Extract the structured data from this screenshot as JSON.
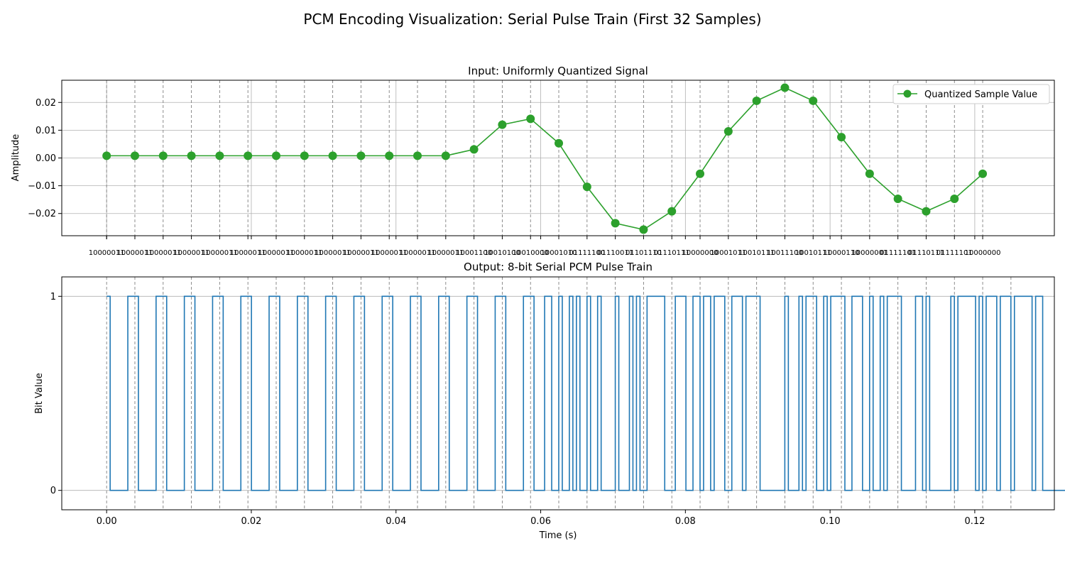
{
  "chart_data": {
    "type": "line",
    "title": "PCM Encoding Visualization: Serial Pulse Train (First 32 Samples)",
    "sample_times": [
      0,
      0.003906,
      0.007813,
      0.011719,
      0.015625,
      0.019531,
      0.023438,
      0.027344,
      0.03125,
      0.035156,
      0.039063,
      0.042969,
      0.046875,
      0.050781,
      0.054688,
      0.058594,
      0.0625,
      0.066406,
      0.070313,
      0.074219,
      0.078125,
      0.082031,
      0.085938,
      0.089844,
      0.09375,
      0.097656,
      0.101563,
      0.105469,
      0.109375,
      0.113281,
      0.117188,
      0.121094
    ],
    "top": {
      "title": "Input: Uniformly Quantized Signal",
      "ylabel": "Amplitude",
      "ylim": [
        -0.028,
        0.028
      ],
      "yticks": [
        -0.02,
        -0.01,
        0.0,
        0.01,
        0.02
      ],
      "ytick_labels": [
        "−0.02",
        "−0.01",
        "0.00",
        "0.01",
        "0.02"
      ],
      "legend": "Quantized Sample Value",
      "legend_position": "top-right",
      "color": "#2ca02c",
      "values": [
        0.0008,
        0.0008,
        0.0008,
        0.0008,
        0.0008,
        0.0008,
        0.0008,
        0.0008,
        0.0008,
        0.0008,
        0.0008,
        0.0008,
        0.0008,
        0.0031,
        0.012,
        0.0141,
        0.0053,
        -0.0104,
        -0.0235,
        -0.0258,
        -0.0192,
        -0.0057,
        0.0096,
        0.0206,
        0.0253,
        0.0206,
        0.0075,
        -0.0057,
        -0.0147,
        -0.0192,
        -0.0147,
        -0.0057
      ],
      "codes": [
        "10000011",
        "10000011",
        "10000011",
        "10000011",
        "10000011",
        "10000011",
        "10000011",
        "10000011",
        "10000011",
        "10000011",
        "10000011",
        "10000011",
        "10000011",
        "10001100",
        "10010100",
        "10010000",
        "10001010",
        "01111100",
        "01110011",
        "01101110",
        "01110111",
        "10000000",
        "10001011",
        "10010111",
        "10011100",
        "10010111",
        "10000110",
        "10000001",
        "01111101",
        "01110111",
        "01111101",
        "10000000"
      ]
    },
    "bottom": {
      "title": "Output: 8-bit Serial PCM Pulse Train",
      "xlabel": "Time (s)",
      "ylabel": "Bit Value",
      "ylim": [
        -0.1,
        1.1
      ],
      "yticks": [
        0,
        1
      ],
      "ytick_labels": [
        "0",
        "1"
      ],
      "xlim": [
        -0.0062,
        0.131
      ],
      "xticks": [
        0.0,
        0.02,
        0.04,
        0.06,
        0.08,
        0.1,
        0.12
      ],
      "xtick_labels": [
        "0.00",
        "0.02",
        "0.04",
        "0.06",
        "0.08",
        "0.10",
        "0.12"
      ],
      "color": "#1f77b4",
      "bits": "10000011100000111000001110000011100000111000001110000011100000111000001110000011100000111000001110000011100000111000001110001100100101001001000010001010011111000111001101101110011101111000000010001011100101111001110010010111100001101000000101111101011101110111110110000000"
    }
  }
}
